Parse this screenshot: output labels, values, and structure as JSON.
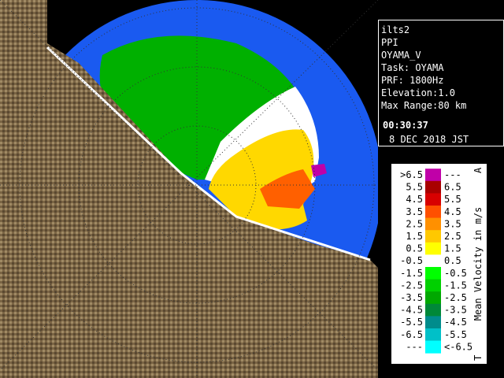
{
  "info": {
    "lines": [
      "ilts2",
      "PPI",
      "OYAMA_V",
      "Task: OYAMA",
      "PRF: 1800Hz",
      "Elevation:1.0",
      "Max Range:80 km"
    ],
    "time": "00:30:37",
    "date": "8 DEC 2018 JST"
  },
  "legend": {
    "title": "Mean Velocity in m/s",
    "top_mark": "A",
    "bottom_mark": "T",
    "rows": [
      {
        "left": ">6.5",
        "right": "---",
        "color": "#c000a8"
      },
      {
        "left": "5.5",
        "right": "6.5",
        "color": "#a80000"
      },
      {
        "left": "4.5",
        "right": "5.5",
        "color": "#d80000"
      },
      {
        "left": "3.5",
        "right": "4.5",
        "color": "#ff5000"
      },
      {
        "left": "2.5",
        "right": "3.5",
        "color": "#ff9000"
      },
      {
        "left": "1.5",
        "right": "2.5",
        "color": "#ffc800"
      },
      {
        "left": "0.5",
        "right": "1.5",
        "color": "#ffff00"
      },
      {
        "left": "-0.5",
        "right": "0.5",
        "color": "#ffffff"
      },
      {
        "left": "-1.5",
        "right": "-0.5",
        "color": "#00ff00"
      },
      {
        "left": "-2.5",
        "right": "-1.5",
        "color": "#00d000"
      },
      {
        "left": "-3.5",
        "right": "-2.5",
        "color": "#00a800"
      },
      {
        "left": "-4.5",
        "right": "-3.5",
        "color": "#008838"
      },
      {
        "left": "-5.5",
        "right": "-4.5",
        "color": "#008c8c"
      },
      {
        "left": "-6.5",
        "right": "-5.5",
        "color": "#00c0c8"
      },
      {
        "left": "---",
        "right": "<-6.5",
        "color": "#00ffff"
      }
    ]
  }
}
